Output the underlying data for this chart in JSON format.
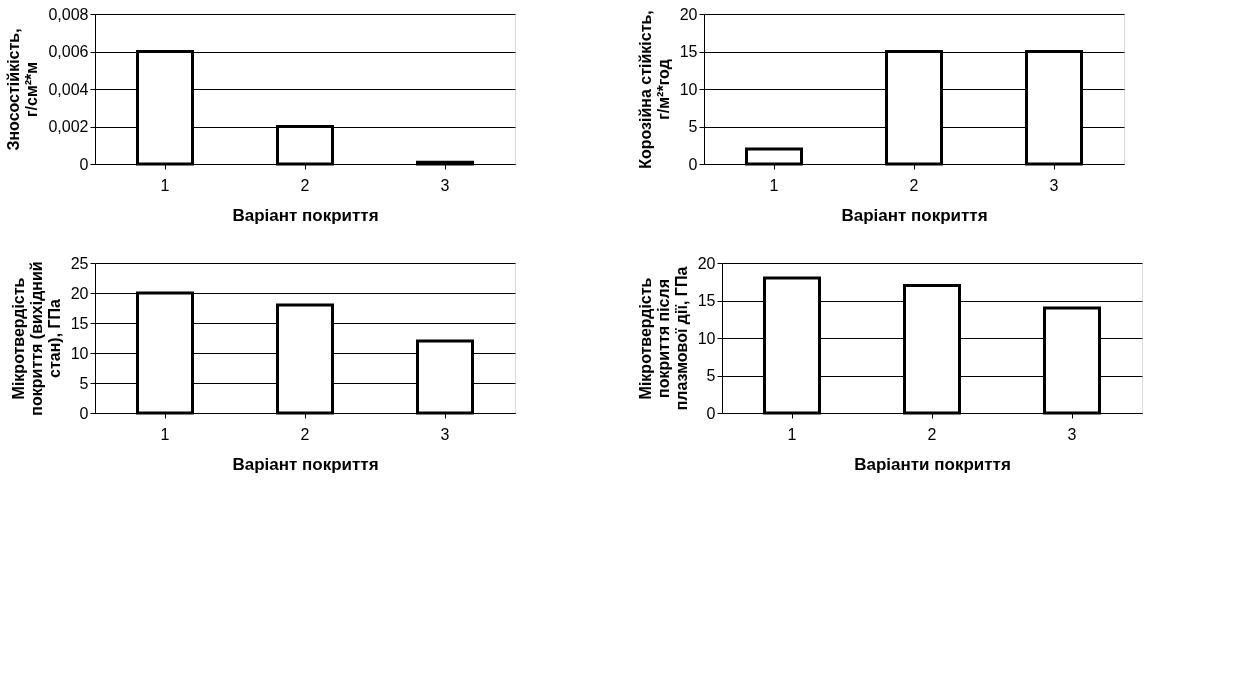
{
  "chart_data": [
    {
      "type": "bar",
      "categories": [
        "1",
        "2",
        "3"
      ],
      "values": [
        0.006,
        0.002,
        0.0001
      ],
      "color": "#ffffff",
      "xlabel": "Варіант покриття",
      "ylabel": "Зносостійкість,\nг/см²*м",
      "ylim": [
        0,
        0.008
      ],
      "yticks": [
        0,
        {
          "value": 0.002,
          "label": "0,002"
        },
        {
          "value": 0.004,
          "label": "0,004"
        },
        {
          "value": 0.006,
          "label": "0,006"
        },
        {
          "value": 0.008,
          "label": "0,008"
        }
      ],
      "grid": "y",
      "legend": false
    },
    {
      "type": "bar",
      "categories": [
        "1",
        "2",
        "3"
      ],
      "values": [
        2,
        15,
        15
      ],
      "color": "#ffffff",
      "xlabel": "Варіант покриття",
      "ylabel": "Корозійна стійкість,\nг/м²*год",
      "ylim": [
        0,
        20
      ],
      "yticks": [
        0,
        5,
        10,
        15,
        20
      ],
      "grid": "y",
      "legend": false
    },
    {
      "type": "bar",
      "categories": [
        "1",
        "2",
        "3"
      ],
      "values": [
        20,
        18,
        12
      ],
      "color": "#ffffff",
      "xlabel": "Варіант покриття",
      "ylabel": "Мікротвердість\nпокриття (вихідний\nстан), ГПа",
      "ylim": [
        0,
        25
      ],
      "yticks": [
        0,
        5,
        10,
        15,
        20,
        25
      ],
      "grid": "y",
      "legend": false
    },
    {
      "type": "bar",
      "categories": [
        "1",
        "2",
        "3"
      ],
      "values": [
        18,
        17,
        14
      ],
      "color": "#ffffff",
      "xlabel": "Варіанти покриття",
      "ylabel": "Мікротвердість\nпокриття після\nплазмової дії, ГПа",
      "ylim": [
        0,
        20
      ],
      "yticks": [
        0,
        5,
        10,
        15,
        20
      ],
      "grid": "y",
      "legend": false
    }
  ]
}
